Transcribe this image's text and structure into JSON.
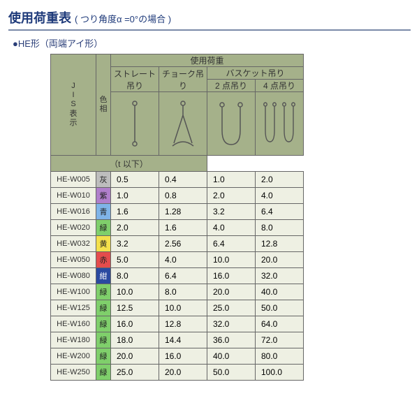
{
  "title_main": "使用荷重表",
  "title_sub": " ( つり角度α =0°の場合 )",
  "subtitle": "●HE形（両端アイ形）",
  "header": {
    "jis": "JIS表示",
    "hue": "色相",
    "main": "使用荷重",
    "straight": "ストレート吊り",
    "choke": "チョーク吊り",
    "basket": "バスケット吊り",
    "pt2": "2 点吊り",
    "pt4": "4 点吊り",
    "unit": "（t 以下）"
  },
  "colors_map": {
    "灰": "#bdbdbd",
    "紫": "#b07fcb",
    "青": "#7fb4e8",
    "緑": "#7fcf6b",
    "黄": "#f4e04c",
    "赤": "#e44c4c",
    "紺": "#2a4aa0"
  },
  "rows": [
    {
      "jis": "HE-W005",
      "hue": "灰",
      "v": [
        "0.5",
        "0.4",
        "1.0",
        "2.0"
      ]
    },
    {
      "jis": "HE-W010",
      "hue": "紫",
      "v": [
        "1.0",
        "0.8",
        "2.0",
        "4.0"
      ]
    },
    {
      "jis": "HE-W016",
      "hue": "青",
      "v": [
        "1.6",
        "1.28",
        "3.2",
        "6.4"
      ]
    },
    {
      "jis": "HE-W020",
      "hue": "緑",
      "v": [
        "2.0",
        "1.6",
        "4.0",
        "8.0"
      ]
    },
    {
      "jis": "HE-W032",
      "hue": "黄",
      "v": [
        "3.2",
        "2.56",
        "6.4",
        "12.8"
      ]
    },
    {
      "jis": "HE-W050",
      "hue": "赤",
      "v": [
        "5.0",
        "4.0",
        "10.0",
        "20.0"
      ]
    },
    {
      "jis": "HE-W080",
      "hue": "紺",
      "v": [
        "8.0",
        "6.4",
        "16.0",
        "32.0"
      ]
    },
    {
      "jis": "HE-W100",
      "hue": "緑",
      "v": [
        "10.0",
        "8.0",
        "20.0",
        "40.0"
      ]
    },
    {
      "jis": "HE-W125",
      "hue": "緑",
      "v": [
        "12.5",
        "10.0",
        "25.0",
        "50.0"
      ]
    },
    {
      "jis": "HE-W160",
      "hue": "緑",
      "v": [
        "16.0",
        "12.8",
        "32.0",
        "64.0"
      ]
    },
    {
      "jis": "HE-W180",
      "hue": "緑",
      "v": [
        "18.0",
        "14.4",
        "36.0",
        "72.0"
      ]
    },
    {
      "jis": "HE-W200",
      "hue": "緑",
      "v": [
        "20.0",
        "16.0",
        "40.0",
        "80.0"
      ]
    },
    {
      "jis": "HE-W250",
      "hue": "緑",
      "v": [
        "25.0",
        "20.0",
        "50.0",
        "100.0"
      ]
    }
  ]
}
